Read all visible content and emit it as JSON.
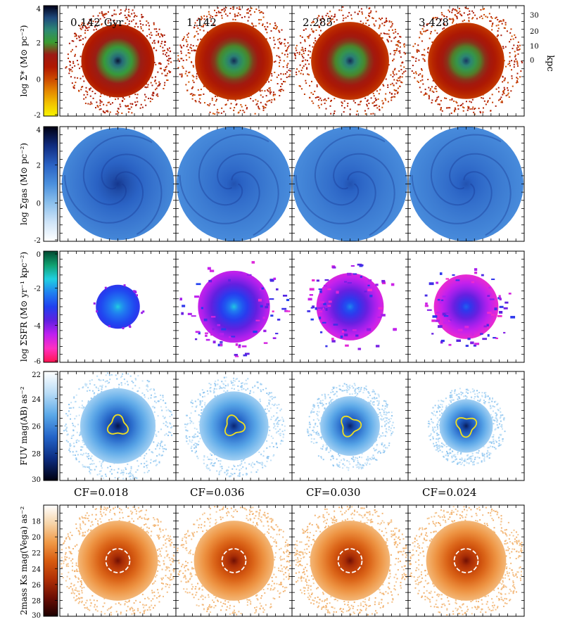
{
  "chart_data": {
    "type": "heatmap",
    "title": "",
    "time_labels": [
      "0.142 Gyr",
      "1.142",
      "2.285",
      "3.428"
    ],
    "kpc_axis": {
      "label": "kpc",
      "ticks": [
        "30",
        "20",
        "10",
        "0"
      ]
    },
    "rows": [
      {
        "id": "stellar",
        "ylabel": "log Σ* (M⊙ pc⁻²)",
        "ylim": [
          -2,
          4
        ],
        "ticks": [
          "4",
          "2",
          "0",
          "-2"
        ],
        "colormap": [
          "#f8f400",
          "#f2c400",
          "#e58a00",
          "#cc4a00",
          "#b01800",
          "#9c1a14",
          "#3a9c30",
          "#2e8a74",
          "#1e4a7c",
          "#000018"
        ],
        "panels": [
          {
            "radius": 0.46,
            "core": 0.3,
            "value_center": 3.8,
            "value_edge": 0.4
          },
          {
            "radius": 0.49,
            "core": 0.28,
            "value_center": 3.6,
            "value_edge": 0.2
          },
          {
            "radius": 0.49,
            "core": 0.3,
            "value_center": 3.6,
            "value_edge": 0.2
          },
          {
            "radius": 0.48,
            "core": 0.28,
            "value_center": 3.5,
            "value_edge": 0.2
          }
        ]
      },
      {
        "id": "gas",
        "ylabel": "log Σgas (M⊙ pc⁻²)",
        "ylim": [
          -2,
          4
        ],
        "ticks": [
          "4",
          "2",
          "0",
          "-2"
        ],
        "colormap": [
          "#ffffff",
          "#cfe4f8",
          "#8cc0ec",
          "#4b90dd",
          "#2a62c4",
          "#102c80",
          "#000012"
        ],
        "panels": [
          {
            "radius": 0.49,
            "core": 0.2,
            "value_center": 2.8,
            "value_edge": 1.2
          },
          {
            "radius": 0.5,
            "core": 0.15,
            "value_center": 2.3,
            "value_edge": 1.1
          },
          {
            "radius": 0.5,
            "core": 0.15,
            "value_center": 2.3,
            "value_edge": 1.1
          },
          {
            "radius": 0.5,
            "core": 0.15,
            "value_center": 2.3,
            "value_edge": 1.1
          }
        ]
      },
      {
        "id": "sfr",
        "ylabel": "log ΣSFR (M⊙ yr⁻¹ kpc⁻²)",
        "ylim": [
          -6,
          0
        ],
        "ticks": [
          "0",
          "-2",
          "-4",
          "-6"
        ],
        "colormap": [
          "#ff1450",
          "#ff30c0",
          "#c020f0",
          "#6020e0",
          "#2040f0",
          "#2080f0",
          "#20d0e0",
          "#10a070",
          "#004830"
        ],
        "panels": [
          {
            "radius": 0.2,
            "core": 0.12,
            "value_center": -1.5,
            "value_edge": -3.2
          },
          {
            "radius": 0.5,
            "core": 0.14,
            "value_center": -1.6,
            "value_edge": -4.6
          },
          {
            "radius": 0.45,
            "core": 0.12,
            "value_center": -2.2,
            "value_edge": -4.8
          },
          {
            "radius": 0.42,
            "core": 0.12,
            "value_center": -2.6,
            "value_edge": -5.0
          }
        ]
      },
      {
        "id": "fuv",
        "ylabel": "FUV mag(AB) as⁻²",
        "ylim": [
          30,
          22
        ],
        "ticks": [
          "22",
          "24",
          "26",
          "28",
          "30"
        ],
        "colormap": [
          "#ffffff",
          "#b8dcf6",
          "#5aa8e8",
          "#2464c8",
          "#0c2c80",
          "#000010"
        ],
        "cf_labels": [
          "CF=0.018",
          "CF=0.036",
          "CF=0.030",
          "CF=0.024"
        ],
        "panels": [
          {
            "radius": 0.48,
            "core": 0.26,
            "value_center": 22.8,
            "value_edge": 28
          },
          {
            "radius": 0.44,
            "core": 0.22,
            "value_center": 23.4,
            "value_edge": 28
          },
          {
            "radius": 0.38,
            "core": 0.22,
            "value_center": 23.2,
            "value_edge": 28
          },
          {
            "radius": 0.34,
            "core": 0.18,
            "value_center": 23.0,
            "value_edge": 28
          }
        ]
      },
      {
        "id": "ks",
        "ylabel": "2mass Ks mag(Vega) as⁻²",
        "ylim": [
          30,
          16
        ],
        "ticks": [
          "18",
          "20",
          "22",
          "24",
          "26",
          "28",
          "30"
        ],
        "colormap": [
          "#ffffff",
          "#f6d4a8",
          "#f09a48",
          "#d85c10",
          "#b03006",
          "#6c0e04",
          "#1c0000"
        ],
        "panels": [
          {
            "radius": 0.5,
            "core": 0.2,
            "value_center": 18.5,
            "value_edge": 26.5
          },
          {
            "radius": 0.5,
            "core": 0.2,
            "value_center": 18.5,
            "value_edge": 26.5
          },
          {
            "radius": 0.5,
            "core": 0.2,
            "value_center": 18.5,
            "value_edge": 26.5
          },
          {
            "radius": 0.5,
            "core": 0.2,
            "value_center": 18.5,
            "value_edge": 26.5
          }
        ]
      }
    ]
  }
}
